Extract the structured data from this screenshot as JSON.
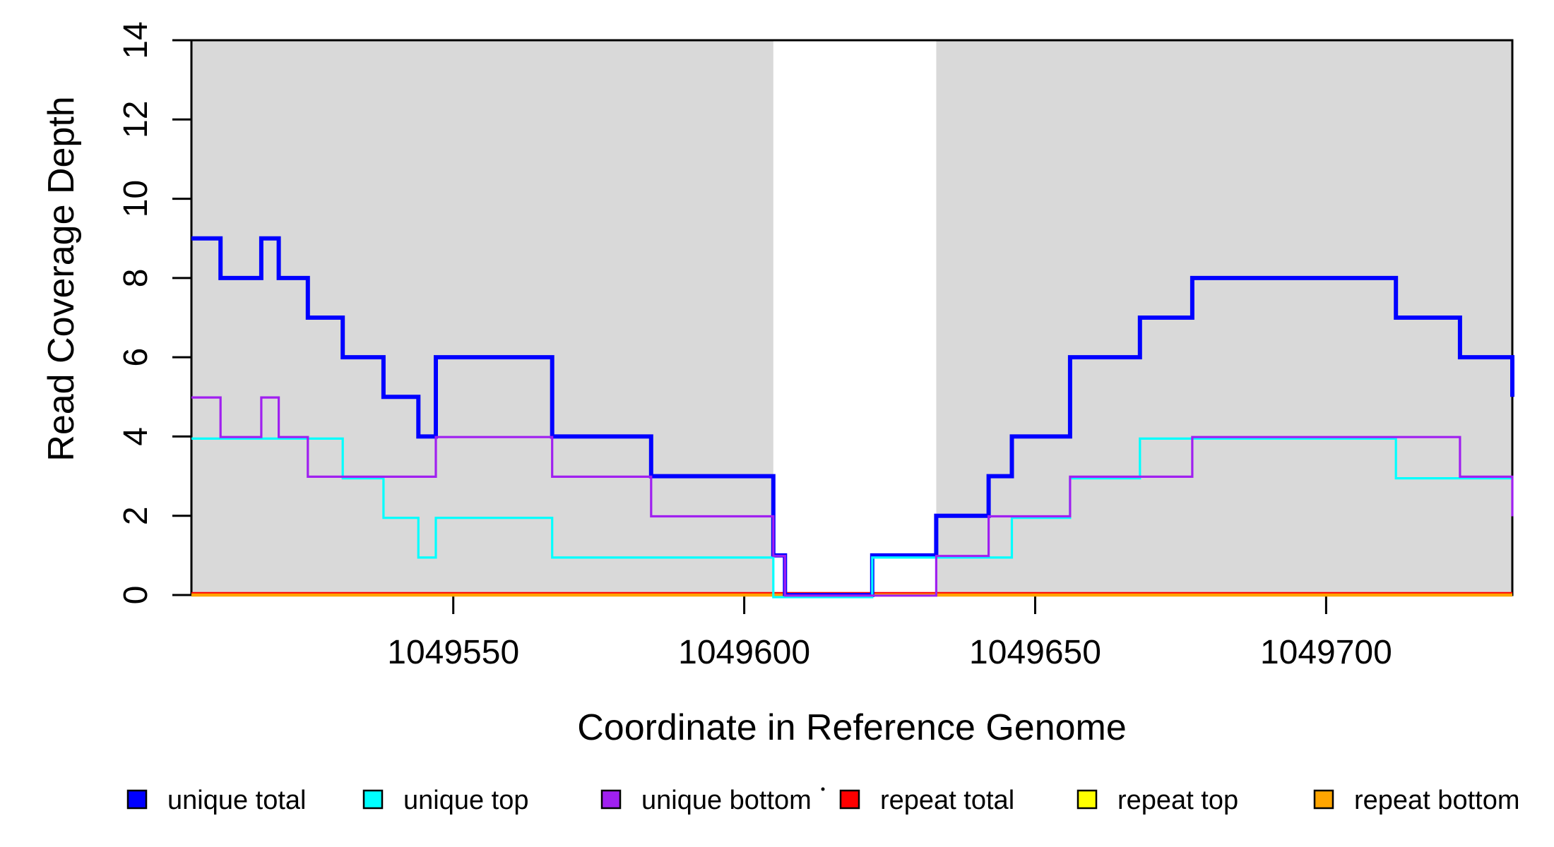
{
  "chart_data": {
    "type": "line",
    "subtype": "step-coverage",
    "title": "",
    "xlabel": "Coordinate in Reference Genome",
    "ylabel": "Read Coverage Depth",
    "xlim": [
      1049505,
      1049732
    ],
    "ylim": [
      0,
      14
    ],
    "x_ticks": [
      1049550,
      1049600,
      1049650,
      1049700
    ],
    "y_ticks": [
      0,
      2,
      4,
      6,
      8,
      10,
      12,
      14
    ],
    "grid": false,
    "colors": {
      "background": "#ffffff",
      "shaded_region": "#d9d9d9",
      "axis": "#000000"
    },
    "shaded_regions": [
      {
        "name": "covered-region-left",
        "x0": 1049505,
        "x1": 1049605
      },
      {
        "name": "covered-region-right",
        "x0": 1049633,
        "x1": 1049732
      }
    ],
    "gap_region": {
      "x0": 1049605,
      "x1": 1049633
    },
    "series": [
      {
        "name": "repeat total",
        "color": "#ff0000",
        "steps": [
          [
            1049505,
            0
          ],
          [
            1049732,
            0
          ]
        ]
      },
      {
        "name": "repeat top",
        "color": "#ffff00",
        "steps": [
          [
            1049505,
            0
          ],
          [
            1049732,
            0
          ]
        ]
      },
      {
        "name": "repeat bottom",
        "color": "#ffa500",
        "steps": [
          [
            1049505,
            0
          ],
          [
            1049732,
            0
          ]
        ]
      },
      {
        "name": "unique total",
        "color": "#0000ff",
        "steps": [
          [
            1049505,
            9
          ],
          [
            1049510,
            8
          ],
          [
            1049517,
            9
          ],
          [
            1049520,
            8
          ],
          [
            1049525,
            7
          ],
          [
            1049531,
            6
          ],
          [
            1049538,
            5
          ],
          [
            1049544,
            4
          ],
          [
            1049547,
            6
          ],
          [
            1049567,
            4
          ],
          [
            1049584,
            3
          ],
          [
            1049605,
            1
          ],
          [
            1049607,
            0
          ],
          [
            1049622,
            1
          ],
          [
            1049633,
            2
          ],
          [
            1049642,
            3
          ],
          [
            1049646,
            4
          ],
          [
            1049656,
            6
          ],
          [
            1049668,
            7
          ],
          [
            1049677,
            8
          ],
          [
            1049712,
            7
          ],
          [
            1049723,
            6
          ],
          [
            1049732,
            5
          ]
        ]
      },
      {
        "name": "unique top",
        "color": "#00ffff",
        "steps": [
          [
            1049505,
            4
          ],
          [
            1049531,
            3
          ],
          [
            1049538,
            2
          ],
          [
            1049544,
            1
          ],
          [
            1049547,
            2
          ],
          [
            1049567,
            1
          ],
          [
            1049605,
            0
          ],
          [
            1049622,
            1
          ],
          [
            1049646,
            2
          ],
          [
            1049656,
            3
          ],
          [
            1049668,
            4
          ],
          [
            1049712,
            3
          ],
          [
            1049732,
            3
          ]
        ]
      },
      {
        "name": "unique bottom",
        "color": "#a020f0",
        "steps": [
          [
            1049505,
            5
          ],
          [
            1049510,
            4
          ],
          [
            1049517,
            5
          ],
          [
            1049520,
            4
          ],
          [
            1049525,
            3
          ],
          [
            1049547,
            4
          ],
          [
            1049567,
            3
          ],
          [
            1049584,
            2
          ],
          [
            1049605,
            1
          ],
          [
            1049607,
            0
          ],
          [
            1049633,
            1
          ],
          [
            1049642,
            2
          ],
          [
            1049656,
            3
          ],
          [
            1049677,
            4
          ],
          [
            1049723,
            3
          ],
          [
            1049732,
            2
          ]
        ]
      }
    ],
    "legend": {
      "position": "bottom",
      "items": [
        {
          "label": "unique total",
          "color": "#0000ff"
        },
        {
          "label": "unique top",
          "color": "#00ffff"
        },
        {
          "label": "unique bottom",
          "color": "#a020f0"
        },
        {
          "label": "repeat total",
          "color": "#ff0000"
        },
        {
          "label": "repeat top",
          "color": "#ffff00"
        },
        {
          "label": "repeat bottom",
          "color": "#ffa500"
        }
      ]
    }
  }
}
